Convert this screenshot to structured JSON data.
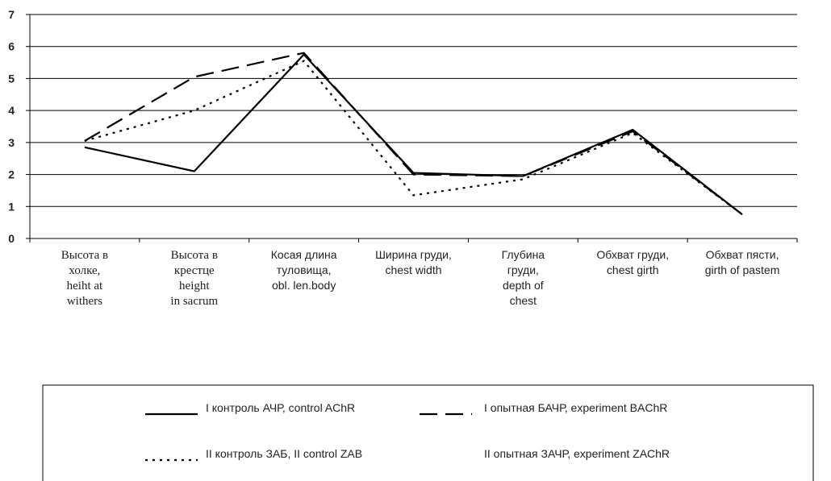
{
  "chart_data": {
    "type": "line",
    "categories": [
      "Высота в\nхолке,\nheiht at\nwithers",
      "Высота в\nкрестце\nheight\nin sacrum",
      "Косая длина\nтуловища,\nobl. len.body",
      "Ширина груди,\nchest width",
      "Глубина\nгруди,\ndepth of\nchest",
      "Обхват груди,\nchest girth",
      "Обхват пясти,\ngirth of pastem"
    ],
    "series": [
      {
        "name": "I контроль АЧР, control AChR",
        "color": "#000000",
        "dash": "none",
        "values": [
          2.85,
          2.1,
          5.75,
          2.05,
          1.95,
          3.4,
          0.75
        ]
      },
      {
        "name": "I опытная БАЧР, experiment BAChR",
        "color": "#000000",
        "dash": "22 10",
        "values": [
          3.05,
          5.05,
          5.8,
          2.0,
          1.95,
          3.35,
          0.75
        ]
      },
      {
        "name": "II контроль ЗАБ, II control ZAB",
        "color": "#000000",
        "dash": "3 6",
        "values": [
          3.05,
          4.0,
          5.55,
          1.35,
          1.85,
          3.3,
          0.75
        ]
      },
      {
        "name": "II опытная ЗАЧР, experiment ZAChR",
        "color": "#000000",
        "dash": "hidden",
        "values": [
          null,
          null,
          null,
          null,
          null,
          null,
          null
        ]
      }
    ],
    "ylim": [
      0,
      7
    ],
    "yticks": [
      0,
      1,
      2,
      3,
      4,
      5,
      6,
      7
    ],
    "grid": true,
    "legend": "bottom"
  }
}
